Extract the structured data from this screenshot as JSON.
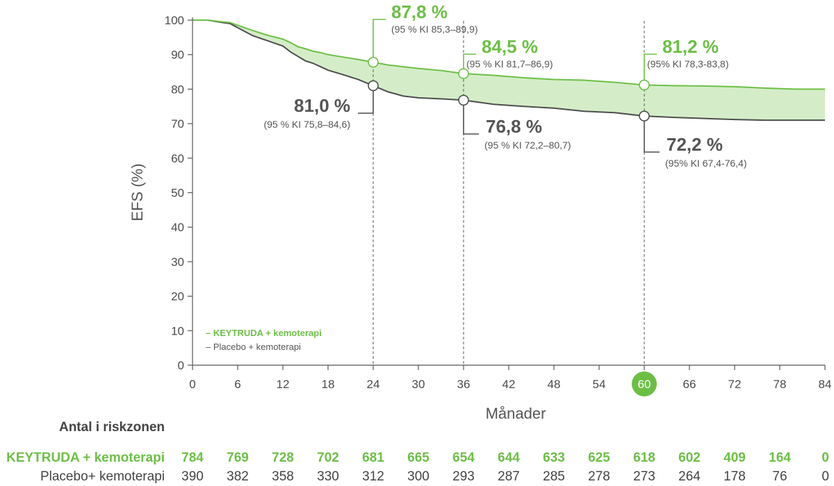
{
  "chart_data": {
    "type": "line",
    "ylabel": "EFS (%)",
    "xlabel": "Månader",
    "ylim": [
      0,
      100
    ],
    "xlim": [
      0,
      84
    ],
    "y_ticks": [
      0,
      10,
      20,
      30,
      40,
      50,
      60,
      70,
      80,
      90,
      100
    ],
    "x_ticks": [
      0,
      6,
      12,
      18,
      24,
      30,
      36,
      42,
      48,
      54,
      60,
      66,
      72,
      78,
      84
    ],
    "highlight_tick": 60,
    "colors": {
      "keytruda": "#6cbf45",
      "placebo": "#4d4d4d",
      "band": "#d4edc8"
    },
    "legend": {
      "keytruda": "– KEYTRUDA + kemoterapi",
      "placebo": "– Placebo + kemoterapi"
    },
    "series": [
      {
        "name": "KEYTRUDA + kemoterapi",
        "x": [
          0,
          2,
          4,
          5,
          6,
          8,
          10,
          12,
          13,
          14,
          15,
          16,
          17,
          18,
          20,
          22,
          24,
          26,
          28,
          30,
          33,
          36,
          40,
          44,
          48,
          52,
          56,
          60,
          64,
          68,
          72,
          76,
          80,
          84
        ],
        "y": [
          100,
          100,
          99.5,
          99.3,
          98.5,
          97,
          95.6,
          94.5,
          93.5,
          92.3,
          91.7,
          91,
          90.6,
          90,
          89.3,
          88.6,
          87.8,
          87,
          86.5,
          86,
          85.4,
          84.5,
          84,
          83.3,
          82.8,
          82.6,
          82,
          81.2,
          81,
          80.9,
          80.7,
          80.3,
          80,
          80
        ]
      },
      {
        "name": "Placebo + kemoterapi",
        "x": [
          0,
          2,
          4,
          5,
          6,
          8,
          10,
          12,
          13,
          14,
          15,
          16,
          17,
          18,
          20,
          22,
          24,
          26,
          28,
          30,
          33,
          36,
          40,
          44,
          48,
          52,
          56,
          60,
          64,
          68,
          72,
          76,
          80,
          84
        ],
        "y": [
          100,
          100,
          99.3,
          99,
          97.8,
          95.5,
          94,
          92.5,
          90.8,
          89.5,
          88.2,
          87.5,
          86.5,
          85.5,
          84.2,
          82.8,
          81,
          79.2,
          78,
          77.5,
          77.2,
          76.8,
          75.6,
          75,
          74.5,
          73.6,
          73.2,
          72.2,
          71.8,
          71.5,
          71.2,
          71,
          71,
          71
        ]
      }
    ],
    "annotations": [
      {
        "month": 24,
        "series": "keytruda",
        "value": 87.8,
        "label": "87,8 %",
        "ci": "(95 % KI 85,3–89,9)"
      },
      {
        "month": 36,
        "series": "keytruda",
        "value": 84.5,
        "label": "84,5 %",
        "ci": "(95 % KI 81,7–86,9)"
      },
      {
        "month": 60,
        "series": "keytruda",
        "value": 81.2,
        "label": "81,2 %",
        "ci": "(95% KI 78,3-83,8)"
      },
      {
        "month": 24,
        "series": "placebo",
        "value": 81.0,
        "label": "81,0 %",
        "ci": "(95 % KI 75,8–84,6)"
      },
      {
        "month": 36,
        "series": "placebo",
        "value": 76.8,
        "label": "76,8 %",
        "ci": "(95 % KI 72,2–80,7)"
      },
      {
        "month": 60,
        "series": "placebo",
        "value": 72.2,
        "label": "72,2 %",
        "ci": "(95% KI 67,4-76,4)"
      }
    ],
    "risk_table": {
      "title": "Antal i riskzonen",
      "rows": [
        {
          "name": "KEYTRUDA + kemoterapi",
          "values": [
            784,
            769,
            728,
            702,
            681,
            665,
            654,
            644,
            633,
            625,
            618,
            602,
            409,
            164,
            0
          ]
        },
        {
          "name": "Placebo+ kemoterapi",
          "values": [
            390,
            382,
            358,
            330,
            312,
            300,
            293,
            287,
            285,
            278,
            273,
            264,
            178,
            76,
            0
          ]
        }
      ]
    }
  }
}
